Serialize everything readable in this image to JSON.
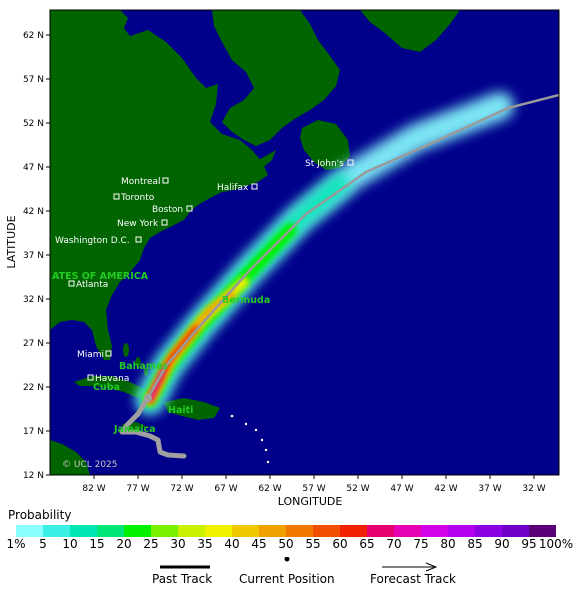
{
  "map": {
    "ylabel": "LATITUDE",
    "xlabel": "LONGITUDE",
    "lat_ticks": [
      "62 N",
      "57 N",
      "52 N",
      "47 N",
      "42 N",
      "37 N",
      "32 N",
      "27 N",
      "22 N",
      "17 N",
      "12 N"
    ],
    "lon_ticks": [
      "82 W",
      "77 W",
      "72 W",
      "67 W",
      "62 W",
      "57 W",
      "52 W",
      "47 W",
      "42 W",
      "37 W",
      "32 W"
    ],
    "cities": [
      "Montreal",
      "Toronto",
      "Halifax",
      "Boston",
      "New York",
      "Washington D.C.",
      "Atlanta",
      "Miami",
      "Havana",
      "St John's"
    ],
    "regions": [
      "ATES OF AMERICA",
      "Bermuda",
      "Bahamas",
      "Cuba",
      "Haiti",
      "Jamaica"
    ],
    "credit": "© UCL 2025",
    "colors": {
      "ocean": "#00008b",
      "land": "#006400",
      "past_track": "#a0a0a0",
      "forecast_track": "#9a9a9a"
    }
  },
  "legend": {
    "title": "Probability",
    "ticks": [
      "1%",
      "5",
      "10",
      "15",
      "20",
      "25",
      "30",
      "35",
      "40",
      "45",
      "50",
      "55",
      "60",
      "65",
      "70",
      "75",
      "80",
      "85",
      "90",
      "95",
      "100%"
    ],
    "colors": [
      "#8affff",
      "#3cf0e6",
      "#00e6b4",
      "#00e678",
      "#00f000",
      "#78f000",
      "#c8f000",
      "#f0f000",
      "#f0c800",
      "#f0a000",
      "#f07800",
      "#f05000",
      "#f02000",
      "#e6006e",
      "#e600b4",
      "#d200e6",
      "#b400f0",
      "#8c00e6",
      "#7300c8",
      "#5a0078"
    ],
    "past_track": "Past Track",
    "current_position": "Current Position",
    "forecast_track": "Forecast Track"
  }
}
